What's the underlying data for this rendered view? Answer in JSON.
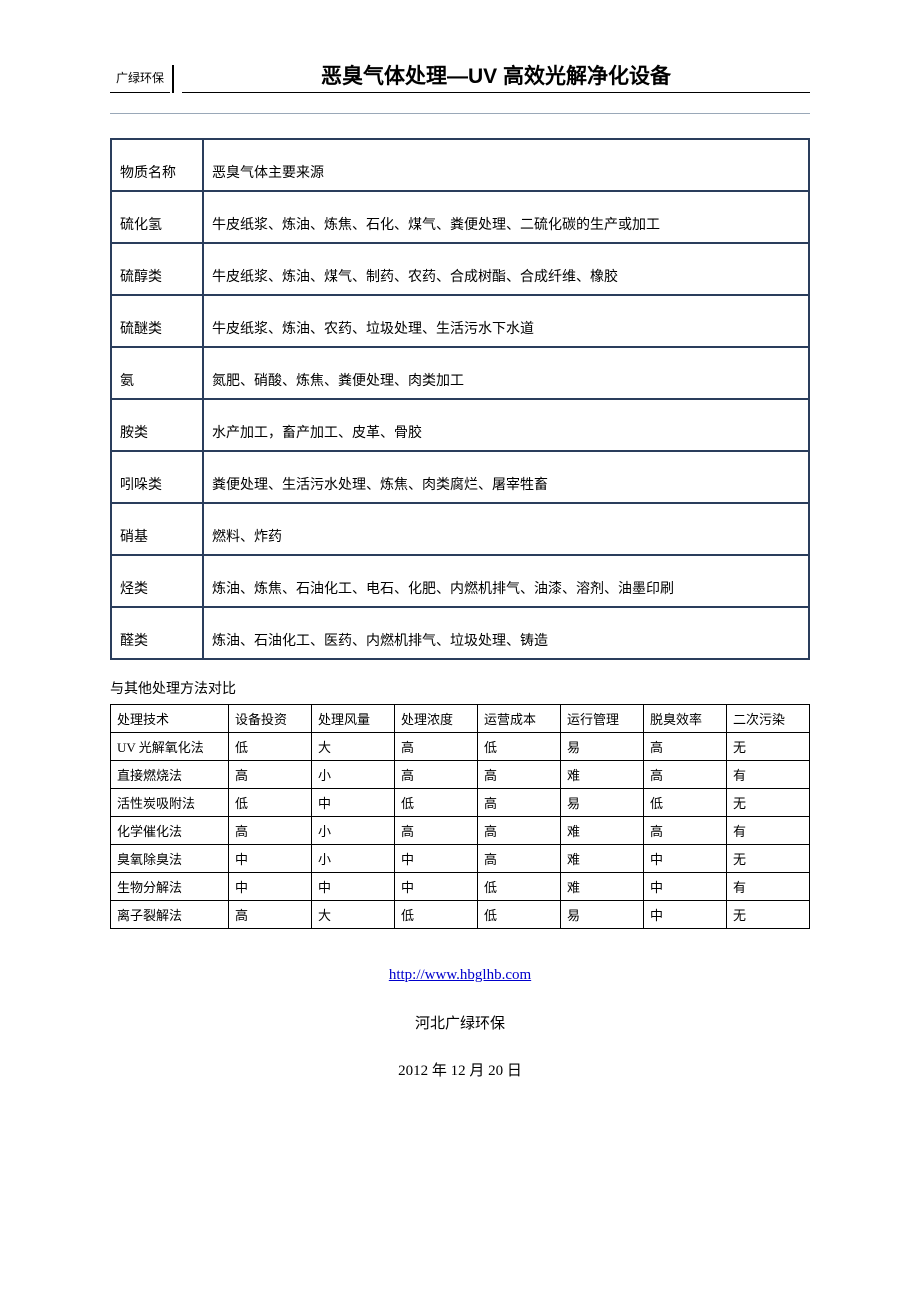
{
  "header": {
    "left_label": "广绿环保",
    "title": "恶臭气体处理—UV 高效光解净化设备"
  },
  "odor_table": {
    "col_border_color": "#2a3d5c",
    "rows": [
      {
        "name": "物质名称",
        "source": "恶臭气体主要来源"
      },
      {
        "name": "硫化氢",
        "source": "牛皮纸浆、炼油、炼焦、石化、煤气、粪便处理、二硫化碳的生产或加工"
      },
      {
        "name": "硫醇类",
        "source": "牛皮纸浆、炼油、煤气、制药、农药、合成树酯、合成纤维、橡胶"
      },
      {
        "name": "硫醚类",
        "source": "牛皮纸浆、炼油、农药、垃圾处理、生活污水下水道"
      },
      {
        "name": "氨",
        "source": "氮肥、硝酸、炼焦、粪便处理、肉类加工"
      },
      {
        "name": "胺类",
        "source": "水产加工，畜产加工、皮革、骨胶"
      },
      {
        "name": "吲哚类",
        "source": "粪便处理、生活污水处理、炼焦、肉类腐烂、屠宰牲畜"
      },
      {
        "name": "硝基",
        "source": "燃料、炸药"
      },
      {
        "name": "烃类",
        "source": "炼油、炼焦、石油化工、电石、化肥、内燃机排气、油漆、溶剂、油墨印刷"
      },
      {
        "name": "醛类",
        "source": "炼油、石油化工、医药、内燃机排气、垃圾处理、铸造"
      }
    ]
  },
  "compare": {
    "heading": "与其他处理方法对比",
    "columns": [
      "处理技术",
      "设备投资",
      "处理风量",
      "处理浓度",
      "运营成本",
      "运行管理",
      "脱臭效率",
      "二次污染"
    ],
    "rows": [
      [
        "UV 光解氧化法",
        "低",
        "大",
        "高",
        "低",
        "易",
        "高",
        "无"
      ],
      [
        "直接燃烧法",
        "高",
        "小",
        "高",
        "高",
        "难",
        "高",
        "有"
      ],
      [
        "活性炭吸附法",
        "低",
        "中",
        "低",
        "高",
        "易",
        "低",
        "无"
      ],
      [
        "化学催化法",
        "高",
        "小",
        "高",
        "高",
        "难",
        "高",
        "有"
      ],
      [
        "臭氧除臭法",
        "中",
        "小",
        "中",
        "高",
        "难",
        "中",
        "无"
      ],
      [
        "生物分解法",
        "中",
        "中",
        "中",
        "低",
        "难",
        "中",
        "有"
      ],
      [
        "离子裂解法",
        "高",
        "大",
        "低",
        "低",
        "易",
        "中",
        "无"
      ]
    ]
  },
  "footer": {
    "url": "http://www.hbglhb.com",
    "org": "河北广绿环保",
    "date": "2012 年 12 月 20 日"
  }
}
